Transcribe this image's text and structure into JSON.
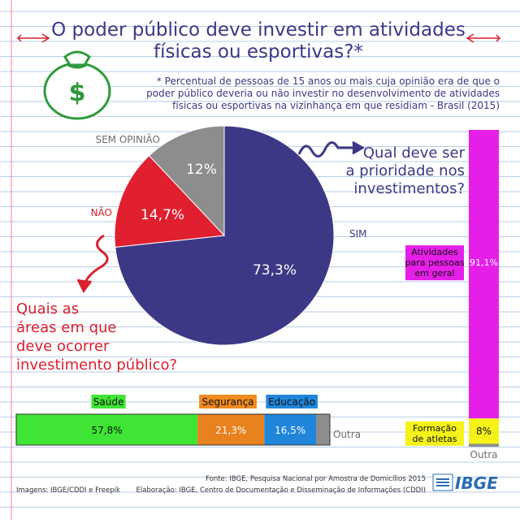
{
  "title": {
    "line1": "O poder público deve investir em atividades",
    "line2": "físicas ou esportivas?*"
  },
  "note": {
    "line1": "* Percentual de pessoas de 15 anos ou mais cuja opinião era de que o",
    "line2": "poder público deveria ou não investir no desenvolvimento de atividades",
    "line3": "físicas ou esportivas na vizinhança em que residiam - Brasil (2015)"
  },
  "pie": {
    "slices": [
      {
        "name": "SIM",
        "value": 73.3,
        "display": "73,3%",
        "color": "#3d3886"
      },
      {
        "name": "NÃO",
        "value": 14.7,
        "display": "14,7%",
        "color": "#e0202f"
      },
      {
        "name": "SEM OPINIÃO",
        "value": 12.0,
        "display": "12%",
        "color": "#8d8d8d"
      }
    ]
  },
  "question_priority": {
    "line1": "Qual deve ser",
    "line2": "a prioridade nos",
    "line3": "investimentos?"
  },
  "question_areas": {
    "line1": "Quais as",
    "line2": "áreas em que",
    "line3": "deve ocorrer",
    "line4": "investimento público?"
  },
  "areas_bar": {
    "segments": [
      {
        "name": "Saúde",
        "value": 57.8,
        "display": "57,8%",
        "color": "#3fe534",
        "tag_color": "#3fe534"
      },
      {
        "name": "Segurança",
        "value": 21.3,
        "display": "21,3%",
        "color": "#e8821e",
        "tag_color": "#f08a1e"
      },
      {
        "name": "Educação",
        "value": 16.5,
        "display": "16,5%",
        "color": "#1f86dc",
        "tag_color": "#1f86dc"
      },
      {
        "name": "Outra",
        "value": 4.4,
        "display": "",
        "color": "#8d8d8d"
      }
    ]
  },
  "priority_bar": {
    "segments": [
      {
        "name": "Atividades para pessoas em geral",
        "name_lines": [
          "Atividades",
          "para pessoas",
          "em geral"
        ],
        "value": 91.1,
        "display": "91,1%",
        "color": "#e51fe8"
      },
      {
        "name": "Formação de atletas",
        "name_lines": [
          "Formação",
          "de atletas"
        ],
        "value": 8.0,
        "display": "8%",
        "color": "#f5f21a"
      },
      {
        "name": "Outra",
        "value": 0.9,
        "display": "",
        "color": "#8d8d8d"
      }
    ]
  },
  "chart_data": [
    {
      "type": "pie",
      "title": "O poder público deve investir em atividades físicas ou esportivas?*",
      "categories": [
        "SIM",
        "NÃO",
        "SEM OPINIÃO"
      ],
      "values": [
        73.3,
        14.7,
        12.0
      ]
    },
    {
      "type": "bar",
      "title": "Quais as áreas em que deve ocorrer investimento público?",
      "categories": [
        "Saúde",
        "Segurança",
        "Educação",
        "Outra"
      ],
      "values": [
        57.8,
        21.3,
        16.5,
        4.4
      ]
    },
    {
      "type": "bar",
      "title": "Qual deve ser a prioridade nos investimentos?",
      "categories": [
        "Atividades para pessoas em geral",
        "Formação de atletas",
        "Outra"
      ],
      "values": [
        91.1,
        8.0,
        0.9
      ]
    }
  ],
  "footer": {
    "source": "Fonte:  IBGE, Pesquisa Nacional por Amostra de Domicílios 2015",
    "elaboration": "Elaboração: IBGE, Centro de Documentação e Disseminação de Informações (CDDI)",
    "images_credit": "Imagens: IBGE/CDDI e Freepik",
    "logo_text": "IBGE"
  },
  "colors": {
    "title": "#3d3886",
    "red_text": "#d9202f",
    "paper_line": "#b9cde6",
    "margin_line": "#e8889a",
    "money_green": "#2e9a3a"
  }
}
